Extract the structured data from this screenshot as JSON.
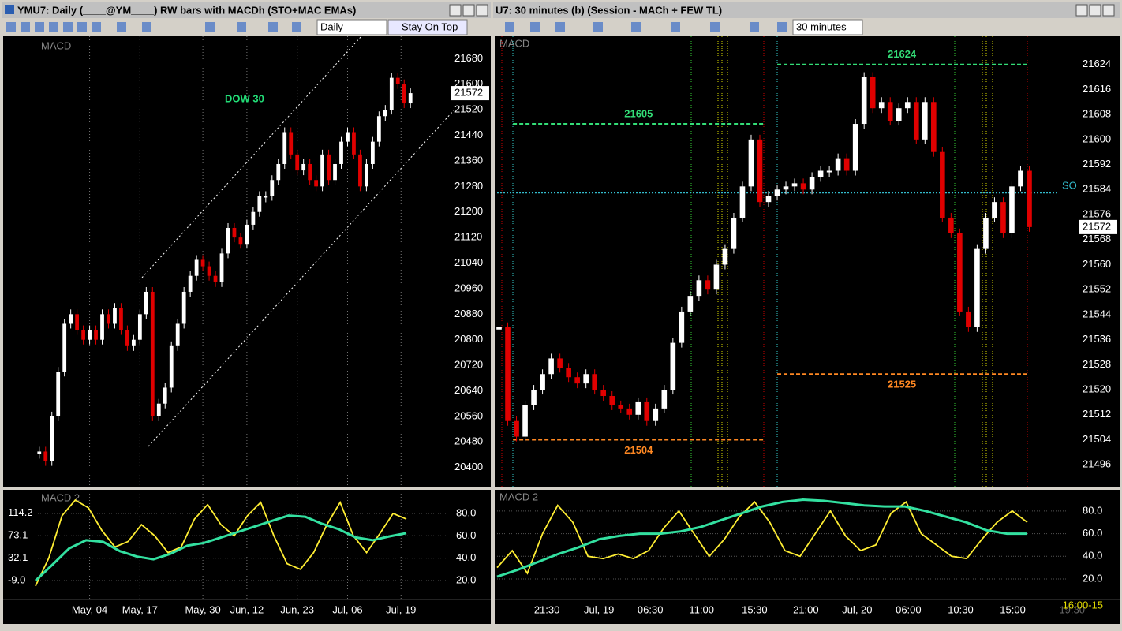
{
  "windows": [
    {
      "title": "YMU7: Daily (____@YM____) RW bars with MACDh (STO+MAC EMAs)",
      "interval": "Daily",
      "button": "Stay On Top"
    },
    {
      "title": "U7: 30 minutes (b) (Session - MACh +  FEW TL)",
      "interval": "30 minutes",
      "footer": "16:00-15",
      "footer_behind": "19:30"
    }
  ],
  "chart_data": [
    {
      "type": "candlestick",
      "panel_label": "MACD",
      "annotation": "DOW 30",
      "last_price": 21572,
      "values": [
        20450,
        20420,
        20560,
        20700,
        20850,
        20880,
        20830,
        20800,
        20830,
        20800,
        20880,
        20850,
        20900,
        20830,
        20780,
        20800,
        20880,
        20950,
        20560,
        20600,
        20650,
        20780,
        20850,
        20950,
        21000,
        21050,
        21030,
        21000,
        20980,
        21070,
        21150,
        21120,
        21100,
        21160,
        21200,
        21250,
        21250,
        21300,
        21350,
        21450,
        21380,
        21330,
        21350,
        21300,
        21280,
        21380,
        21300,
        21350,
        21420,
        21450,
        21380,
        21280,
        21350,
        21420,
        21500,
        21520,
        21620,
        21600,
        21540,
        21572
      ],
      "up_color": "#ffffff",
      "down_color": "#e00000",
      "xlim": [
        -0.6,
        59.6
      ],
      "xticks": [
        {
          "value": 8,
          "label": "May, 04"
        },
        {
          "value": 16,
          "label": "May, 17"
        },
        {
          "value": 26,
          "label": "May, 30"
        },
        {
          "value": 33,
          "label": "Jun, 12"
        },
        {
          "value": 41,
          "label": "Jun, 23"
        },
        {
          "value": 49,
          "label": "Jul, 06"
        },
        {
          "value": 57.5,
          "label": "Jul, 19"
        }
      ],
      "ylim": [
        20340,
        21750
      ],
      "yticks": [
        20400,
        20480,
        20560,
        20640,
        20720,
        20800,
        20880,
        20960,
        21040,
        21120,
        21200,
        21280,
        21360,
        21440,
        21520,
        21600,
        21680
      ]
    },
    {
      "type": "line",
      "panel_label": "MACD 2",
      "series": [
        {
          "color": "#ffee33",
          "axis": "y2",
          "values": [
            15,
            40,
            78,
            92,
            85,
            65,
            50,
            55,
            70,
            60,
            45,
            50,
            75,
            88,
            70,
            60,
            78,
            90,
            60,
            35,
            30,
            45,
            70,
            90,
            60,
            45,
            62,
            80,
            75
          ]
        },
        {
          "color": "#33e0a0",
          "values": [
            -9,
            20,
            50,
            65,
            62,
            45,
            35,
            30,
            40,
            55,
            60,
            70,
            80,
            90,
            100,
            110,
            108,
            95,
            85,
            70,
            65,
            72,
            78
          ]
        }
      ],
      "ylim": [
        -43.5,
        155.8
      ],
      "yticks": [
        114.2,
        73.1,
        32.1,
        {
          "value": -9,
          "label": "-9.0"
        }
      ],
      "y2lim": [
        3,
        100.5
      ],
      "y2ticks": [
        {
          "value": 80,
          "label": "80.0"
        },
        {
          "value": 60,
          "label": "60.0"
        },
        {
          "value": 40,
          "label": "40.0"
        },
        {
          "value": 20,
          "label": "20.0"
        }
      ]
    },
    {
      "type": "candlestick",
      "panel_label": "MACD",
      "last_price": 21572,
      "values": [
        21540,
        21510,
        21505,
        21515,
        21520,
        21525,
        21530,
        21527,
        21524,
        21522,
        21525,
        21520,
        21518,
        21515,
        21514,
        21512,
        21516,
        21510,
        21514,
        21520,
        21535,
        21545,
        21550,
        21555,
        21552,
        21560,
        21565,
        21575,
        21585,
        21600,
        21580,
        21582,
        21584,
        21585,
        21586,
        21584,
        21588,
        21590,
        21590,
        21594,
        21590,
        21605,
        21620,
        21610,
        21612,
        21606,
        21610,
        21612,
        21600,
        21612,
        21596,
        21575,
        21570,
        21545,
        21540,
        21565,
        21575,
        21580,
        21570,
        21585,
        21590,
        21572
      ],
      "up_color": "#ffffff",
      "down_color": "#e00000",
      "levels": [
        {
          "value": 21605,
          "color": "#33dd77"
        },
        {
          "value": 21504,
          "color": "#ff8822"
        },
        {
          "value": 21624,
          "color": "#33dd77"
        },
        {
          "value": 21525,
          "color": "#ff8822"
        },
        {
          "value": 21583,
          "label": "SO",
          "color": "#33bbcc"
        }
      ],
      "xlim": [
        -0.5,
        61.5
      ],
      "xticks": [
        {
          "value": 5.5,
          "label": "21:30"
        },
        {
          "value": 11.5,
          "label": "Jul, 19"
        },
        {
          "value": 17.4,
          "label": "06:30"
        },
        {
          "value": 23.3,
          "label": "11:00"
        },
        {
          "value": 29.4,
          "label": "15:30"
        },
        {
          "value": 35.3,
          "label": "21:00"
        },
        {
          "value": 41.2,
          "label": "Jul, 20"
        },
        {
          "value": 47.1,
          "label": "06:00"
        },
        {
          "value": 53.1,
          "label": "10:30"
        },
        {
          "value": 59.1,
          "label": "15:00"
        }
      ],
      "ylim": [
        21489,
        21633
      ],
      "yticks": [
        21496,
        21504,
        21512,
        21520,
        21528,
        21536,
        21544,
        21552,
        21560,
        21568,
        21576,
        21584,
        21592,
        21600,
        21608,
        21616,
        21624
      ]
    },
    {
      "type": "line",
      "panel_label": "MACD 2",
      "series": [
        {
          "color": "#ffee33",
          "values": [
            30,
            45,
            25,
            60,
            85,
            70,
            40,
            38,
            42,
            38,
            45,
            65,
            80,
            60,
            40,
            55,
            75,
            88,
            70,
            45,
            40,
            60,
            80,
            58,
            45,
            50,
            78,
            88,
            60,
            50,
            40,
            38,
            55,
            70,
            80,
            70
          ]
        },
        {
          "color": "#33e0a0",
          "values": [
            22,
            28,
            35,
            42,
            48,
            55,
            58,
            60,
            60,
            62,
            66,
            72,
            78,
            84,
            88,
            90,
            89,
            87,
            85,
            84,
            84,
            80,
            75,
            70,
            63,
            60,
            60
          ]
        }
      ],
      "ylim": [
        1.9,
        98
      ],
      "yticks": [
        {
          "value": 80,
          "label": "80.0"
        },
        {
          "value": 60,
          "label": "60.0"
        },
        {
          "value": 40,
          "label": "40.0"
        },
        {
          "value": 20,
          "label": "20.0"
        }
      ]
    }
  ]
}
